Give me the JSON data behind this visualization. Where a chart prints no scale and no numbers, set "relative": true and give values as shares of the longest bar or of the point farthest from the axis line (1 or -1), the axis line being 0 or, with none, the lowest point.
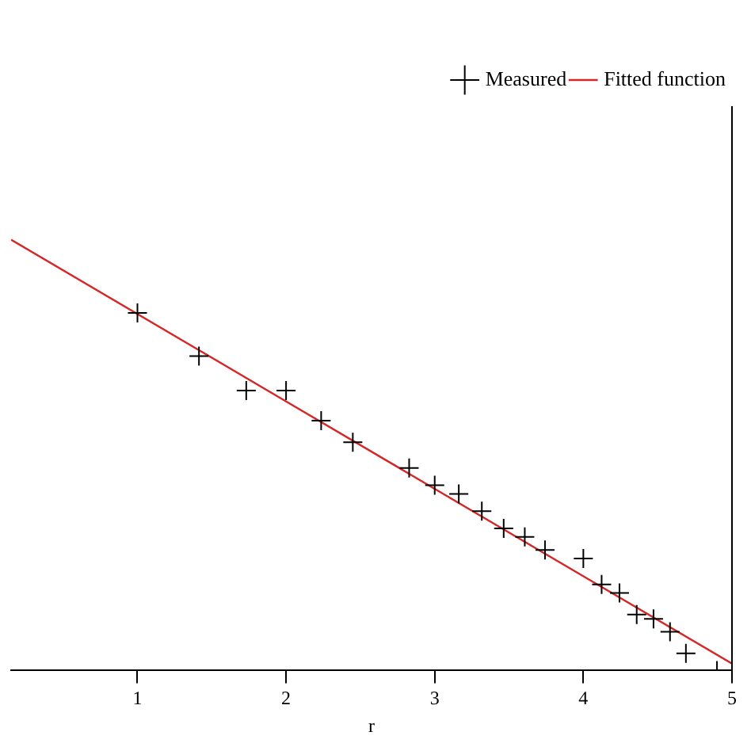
{
  "chart_data": {
    "type": "scatter",
    "xlabel": "r",
    "relative": true,
    "xlim": [
      0.15,
      5
    ],
    "xticks": [
      1,
      2,
      3,
      4,
      5
    ],
    "grid": false,
    "legend": "top right",
    "marker": "cross",
    "series": [
      {
        "name": "Measured",
        "color": "#000000",
        "x": [
          1,
          1.414,
          1.732,
          2,
          2.236,
          2.449,
          2.828,
          3,
          3.162,
          3.317,
          3.464,
          3.606,
          3.742,
          4,
          4.123,
          4.243,
          4.359,
          4.472,
          4.583,
          4.69,
          4.899
        ],
        "values": [
          0.83,
          0.73,
          0.65,
          0.65,
          0.58,
          0.53,
          0.47,
          0.43,
          0.41,
          0.37,
          0.33,
          0.31,
          0.28,
          0.26,
          0.2,
          0.18,
          0.13,
          0.12,
          0.09,
          0.04,
          0
        ]
      },
      {
        "name": "Fitted function",
        "type": "line",
        "marker": "none",
        "color": "#d62728",
        "x": [
          0.15,
          5
        ],
        "values": [
          1,
          0.016
        ]
      }
    ]
  }
}
